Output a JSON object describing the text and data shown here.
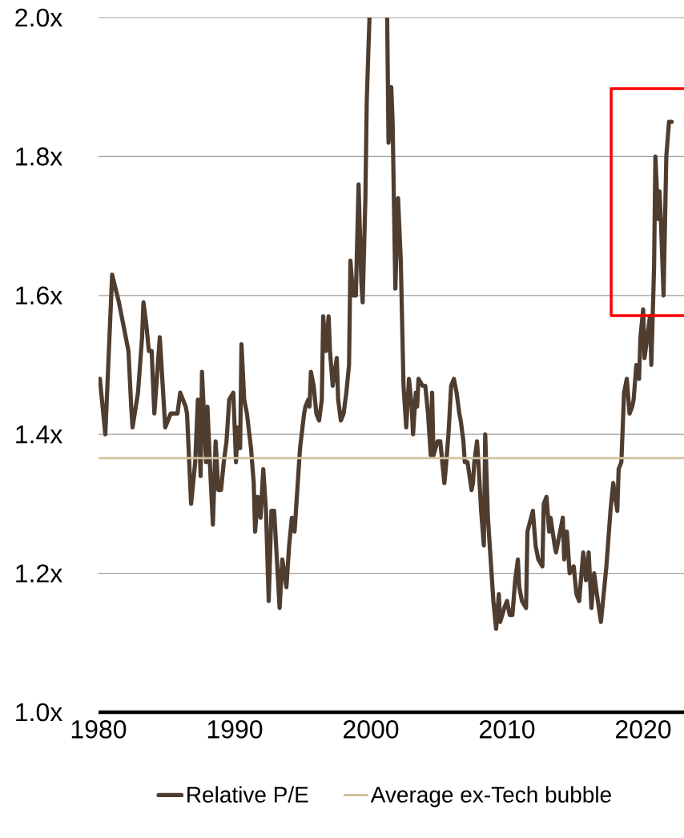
{
  "chart_data": {
    "type": "line",
    "xlim": [
      1980,
      2023
    ],
    "xticks": [
      1980,
      1990,
      2000,
      2010,
      2020
    ],
    "ylim": [
      1.0,
      2.0
    ],
    "yticks": [
      {
        "value": 1.0,
        "label": "1.0x"
      },
      {
        "value": 1.2,
        "label": "1.2x"
      },
      {
        "value": 1.4,
        "label": "1.4x"
      },
      {
        "value": 1.6,
        "label": "1.6x"
      },
      {
        "value": 1.8,
        "label": "1.8x"
      },
      {
        "value": 2.0,
        "label": "2.0x"
      }
    ],
    "grid": "y",
    "legend": "bottom",
    "series": [
      {
        "name": "Relative P/E",
        "color": "#4f3d30",
        "x": [
          1980.1,
          1980.5,
          1981.0,
          1981.5,
          1982.0,
          1982.2,
          1982.4,
          1982.5,
          1982.9,
          1983.2,
          1983.3,
          1983.5,
          1983.7,
          1983.9,
          1984.1,
          1984.5,
          1984.9,
          1985.3,
          1985.6,
          1985.8,
          1986.0,
          1986.4,
          1986.5,
          1986.8,
          1987.1,
          1987.3,
          1987.5,
          1987.6,
          1987.9,
          1988.0,
          1988.2,
          1988.4,
          1988.6,
          1988.8,
          1989.0,
          1989.2,
          1989.4,
          1989.6,
          1989.9,
          1990.1,
          1990.2,
          1990.4,
          1990.5,
          1990.7,
          1990.9,
          1991.2,
          1991.4,
          1991.5,
          1991.7,
          1991.9,
          1992.1,
          1992.3,
          1992.5,
          1992.7,
          1992.9,
          1993.1,
          1993.3,
          1993.5,
          1993.8,
          1994.0,
          1994.2,
          1994.4,
          1994.8,
          1995.1,
          1995.2,
          1995.4,
          1995.5,
          1995.6,
          1995.8,
          1996.0,
          1996.2,
          1996.4,
          1996.5,
          1996.7,
          1996.9,
          1997.0,
          1997.2,
          1997.5,
          1997.6,
          1997.8,
          1998.0,
          1998.2,
          1998.4,
          1998.5,
          1998.7,
          1998.9,
          1999.1,
          1999.3,
          1999.4,
          1999.6,
          1999.7,
          1999.9,
          2000.5,
          2001.2,
          2001.3,
          2001.5,
          2001.6,
          2001.8,
          2002.0,
          2002.2,
          2002.4,
          2002.6,
          2002.8,
          2003.0,
          2003.1,
          2003.3,
          2003.4,
          2003.5,
          2003.8,
          2004.0,
          2004.2,
          2004.4,
          2004.5,
          2004.6,
          2004.9,
          2005.1,
          2005.4,
          2005.5,
          2005.7,
          2005.9,
          2006.1,
          2006.3,
          2006.5,
          2006.6,
          2006.8,
          2006.9,
          2007.1,
          2007.4,
          2007.5,
          2007.6,
          2007.8,
          2007.9,
          2008.1,
          2008.3,
          2008.4,
          2008.6,
          2008.8,
          2009.0,
          2009.2,
          2009.4,
          2009.5,
          2009.8,
          2010.0,
          2010.2,
          2010.4,
          2010.6,
          2010.8,
          2010.9,
          2011.1,
          2011.4,
          2011.5,
          2011.9,
          2012.1,
          2012.3,
          2012.6,
          2012.7,
          2012.9,
          2013.1,
          2013.2,
          2013.5,
          2013.6,
          2013.9,
          2014.1,
          2014.2,
          2014.4,
          2014.6,
          2014.9,
          2015.1,
          2015.3,
          2015.6,
          2015.8,
          2016.0,
          2016.2,
          2016.4,
          2016.6,
          2016.9,
          2017.3,
          2017.6,
          2017.8,
          2018.1,
          2018.2,
          2018.4,
          2018.6,
          2018.8,
          2019.0,
          2019.2,
          2019.3,
          2019.5,
          2019.7,
          2019.8,
          2020.0,
          2020.1,
          2020.3,
          2020.5,
          2020.6,
          2020.8,
          2020.9,
          2021.1,
          2021.2,
          2021.3,
          2021.5,
          2021.7,
          2021.9,
          2022.1
        ],
        "values": [
          1.48,
          1.4,
          1.63,
          1.59,
          1.54,
          1.52,
          1.44,
          1.41,
          1.46,
          1.54,
          1.59,
          1.56,
          1.52,
          1.52,
          1.43,
          1.54,
          1.41,
          1.43,
          1.43,
          1.43,
          1.46,
          1.44,
          1.43,
          1.3,
          1.36,
          1.45,
          1.34,
          1.49,
          1.36,
          1.44,
          1.35,
          1.27,
          1.39,
          1.32,
          1.32,
          1.36,
          1.39,
          1.45,
          1.46,
          1.36,
          1.41,
          1.38,
          1.53,
          1.45,
          1.43,
          1.38,
          1.33,
          1.26,
          1.31,
          1.28,
          1.35,
          1.29,
          1.16,
          1.29,
          1.29,
          1.22,
          1.15,
          1.22,
          1.18,
          1.24,
          1.28,
          1.26,
          1.38,
          1.43,
          1.44,
          1.45,
          1.44,
          1.49,
          1.47,
          1.43,
          1.42,
          1.45,
          1.57,
          1.52,
          1.57,
          1.52,
          1.47,
          1.51,
          1.45,
          1.42,
          1.43,
          1.46,
          1.5,
          1.65,
          1.6,
          1.6,
          1.76,
          1.62,
          1.59,
          1.74,
          1.88,
          2.0,
          null,
          2.0,
          1.82,
          1.9,
          1.85,
          1.61,
          1.74,
          1.65,
          1.47,
          1.41,
          1.48,
          1.44,
          1.4,
          1.46,
          1.44,
          1.48,
          1.47,
          1.47,
          1.43,
          1.37,
          1.46,
          1.37,
          1.39,
          1.39,
          1.33,
          1.35,
          1.4,
          1.47,
          1.48,
          1.46,
          1.43,
          1.42,
          1.39,
          1.36,
          1.36,
          1.32,
          1.33,
          1.36,
          1.39,
          1.36,
          1.29,
          1.24,
          1.4,
          1.28,
          1.22,
          1.16,
          1.12,
          1.17,
          1.13,
          1.15,
          1.16,
          1.14,
          1.14,
          1.19,
          1.22,
          1.18,
          1.16,
          1.15,
          1.26,
          1.29,
          1.24,
          1.22,
          1.21,
          1.3,
          1.31,
          1.26,
          1.28,
          1.24,
          1.23,
          1.26,
          1.28,
          1.22,
          1.26,
          1.2,
          1.21,
          1.17,
          1.16,
          1.23,
          1.19,
          1.23,
          1.15,
          1.2,
          1.17,
          1.13,
          1.21,
          1.29,
          1.33,
          1.29,
          1.35,
          1.36,
          1.46,
          1.48,
          1.43,
          1.44,
          1.45,
          1.5,
          1.48,
          1.54,
          1.58,
          1.51,
          1.54,
          1.57,
          1.5,
          1.64,
          1.8,
          1.71,
          1.75,
          1.71,
          1.6,
          1.8,
          1.85,
          1.85
        ]
      },
      {
        "name": "Average ex-Tech bubble",
        "color": "#d2c19e",
        "x": [
          1980,
          2023
        ],
        "values": [
          1.366,
          1.366
        ]
      }
    ]
  }
}
